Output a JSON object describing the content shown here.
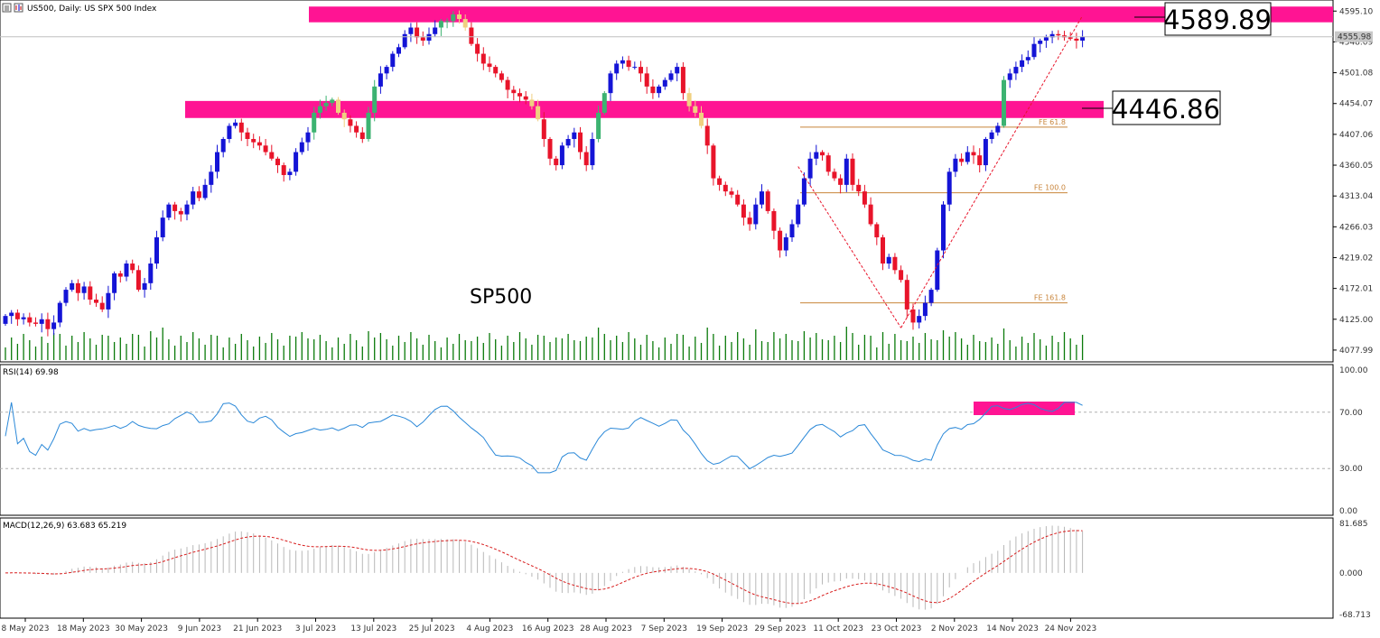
{
  "colors": {
    "bull": "#1414d6",
    "bear": "#e8142a",
    "zone": "#ff1493",
    "zone_candle_bull": "#3cb371",
    "zone_candle_bear": "#f0d080",
    "volume": "#0a7a0a",
    "rsi_line": "#2a88d8",
    "macd_hist": "#b8b8b8",
    "macd_signal": "#d81e1e",
    "fib_line": "#c8843a",
    "grid_dash": "#b0b0b0"
  },
  "header": {
    "title": "US500, Daily:  US SPX 500 Index"
  },
  "annotations": {
    "chart_label": "SP500",
    "resistance_label": "4589.89",
    "support_label": "4446.86",
    "current_price_tag": "4555.98",
    "fe_labels": [
      "FE 61.8",
      "FE 100.0",
      "FE 161.8"
    ]
  },
  "chart_data": [
    {
      "type": "candlestick",
      "title": "US500, Daily:  US SPX 500 Index",
      "price_axis_ticks": [
        "4595.10",
        "4548.09",
        "4501.08",
        "4454.07",
        "4407.06",
        "4360.05",
        "4313.04",
        "4266.03",
        "4219.02",
        "4172.01",
        "4125.00",
        "4077.99"
      ],
      "date_axis_ticks": [
        "8 May 2023",
        "18 May 2023",
        "30 May 2023",
        "9 Jun 2023",
        "21 Jun 2023",
        "3 Jul 2023",
        "13 Jul 2023",
        "25 Jul 2023",
        "4 Aug 2023",
        "16 Aug 2023",
        "28 Aug 2023",
        "7 Sep 2023",
        "19 Sep 2023",
        "29 Sep 2023",
        "11 Oct 2023",
        "23 Oct 2023",
        "2 Nov 2023",
        "14 Nov 2023",
        "24 Nov 2023"
      ],
      "ylim": [
        4060,
        4612
      ],
      "close": [
        4130,
        4135,
        4125,
        4128,
        4120,
        4118,
        4125,
        4110,
        4120,
        4150,
        4170,
        4180,
        4165,
        4175,
        4155,
        4150,
        4140,
        4165,
        4195,
        4190,
        4210,
        4200,
        4170,
        4180,
        4210,
        4250,
        4280,
        4300,
        4290,
        4285,
        4300,
        4320,
        4310,
        4330,
        4350,
        4380,
        4400,
        4420,
        4425,
        4410,
        4400,
        4395,
        4390,
        4380,
        4370,
        4360,
        4345,
        4350,
        4380,
        4395,
        4410,
        4440,
        4450,
        4455,
        4460,
        4440,
        4430,
        4420,
        4410,
        4400,
        4440,
        4480,
        4500,
        4510,
        4530,
        4540,
        4560,
        4570,
        4555,
        4550,
        4560,
        4570,
        4580,
        4580,
        4590,
        4583,
        4570,
        4545,
        4530,
        4515,
        4510,
        4500,
        4490,
        4475,
        4470,
        4465,
        4460,
        4450,
        4430,
        4400,
        4370,
        4360,
        4390,
        4400,
        4410,
        4380,
        4360,
        4400,
        4440,
        4470,
        4500,
        4515,
        4520,
        4510,
        4510,
        4500,
        4480,
        4470,
        4480,
        4490,
        4500,
        4510,
        4470,
        4450,
        4440,
        4420,
        4390,
        4340,
        4330,
        4320,
        4315,
        4300,
        4280,
        4270,
        4300,
        4320,
        4290,
        4260,
        4230,
        4250,
        4270,
        4300,
        4340,
        4370,
        4380,
        4375,
        4350,
        4340,
        4330,
        4370,
        4330,
        4320,
        4300,
        4270,
        4250,
        4210,
        4220,
        4200,
        4185,
        4140,
        4120,
        4130,
        4150,
        4170,
        4230,
        4300,
        4350,
        4370,
        4365,
        4380,
        4375,
        4360,
        4400,
        4410,
        4420,
        4490,
        4500,
        4510,
        4520,
        4525,
        4545,
        4550,
        4555,
        4560,
        4558,
        4555,
        4553,
        4550,
        4556
      ],
      "series_open_rule": "each bar opens at the previous close; the first bar opens at 4118",
      "resistance_zone": [
        4578,
        4602
      ],
      "support_zone": [
        4432,
        4458
      ],
      "fibonacci_expansion": [
        {
          "label": "FE 61.8",
          "level": 4418
        },
        {
          "label": "FE 100.0",
          "level": 4318
        },
        {
          "label": "FE 161.8",
          "level": 4150
        }
      ],
      "volume_ylim": [
        0,
        100
      ]
    },
    {
      "type": "line",
      "title": "RSI(14) 69.98",
      "ylim": [
        0,
        100
      ],
      "y_ticks": [
        "100.00",
        "70.00",
        "30.00",
        "0.00"
      ],
      "levels": [
        70,
        30
      ],
      "highlight_range": [
        70,
        75
      ],
      "grid": true
    },
    {
      "type": "bar",
      "title": "MACD(12,26,9) 63.683 65.219",
      "ylim": [
        -68.713,
        81.685
      ],
      "y_ticks": [
        "81.685",
        "0.000",
        "-68.713"
      ],
      "series": [
        {
          "name": "histogram"
        },
        {
          "name": "signal"
        }
      ]
    }
  ]
}
